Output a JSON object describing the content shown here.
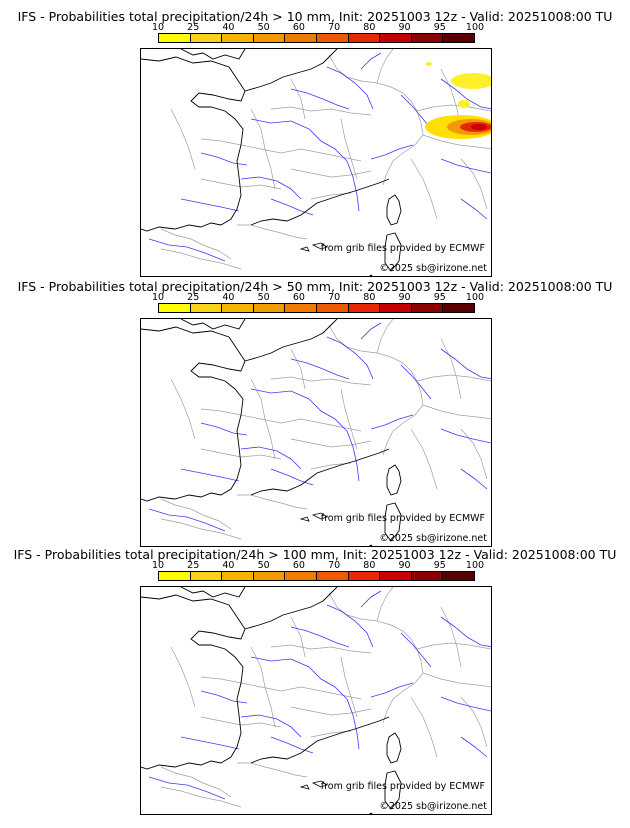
{
  "scale": {
    "ticks": [
      "10",
      "25",
      "40",
      "50",
      "60",
      "70",
      "80",
      "90",
      "95",
      "100"
    ],
    "colors": [
      "#ffff00",
      "#f8d31c",
      "#f4b400",
      "#f29b00",
      "#f07b00",
      "#ee5a00",
      "#e62700",
      "#c40000",
      "#8c0000",
      "#5a0000"
    ]
  },
  "panels": [
    {
      "title": "IFS - Probabilities total precipitation/24h > 10 mm, Init: 20251003 12z - Valid: 20251008:00 TU"
    },
    {
      "title": "IFS - Probabilities total precipitation/24h > 50 mm, Init: 20251003 12z - Valid: 20251008:00 TU"
    },
    {
      "title": "IFS - Probabilities total precipitation/24h > 100 mm, Init: 20251003 12z - Valid: 20251008:00 TU"
    }
  ],
  "map": {
    "credit_source": "from grib files provided by ECMWF",
    "credit_copyright": "©2025 sb@irizone.net",
    "coast_color": "#000000",
    "river_color": "#3b3bff",
    "border_color": "#a0a0a0"
  },
  "precip_area": {
    "region": "Northern Italy / Alps",
    "max_probability": "95-100"
  }
}
